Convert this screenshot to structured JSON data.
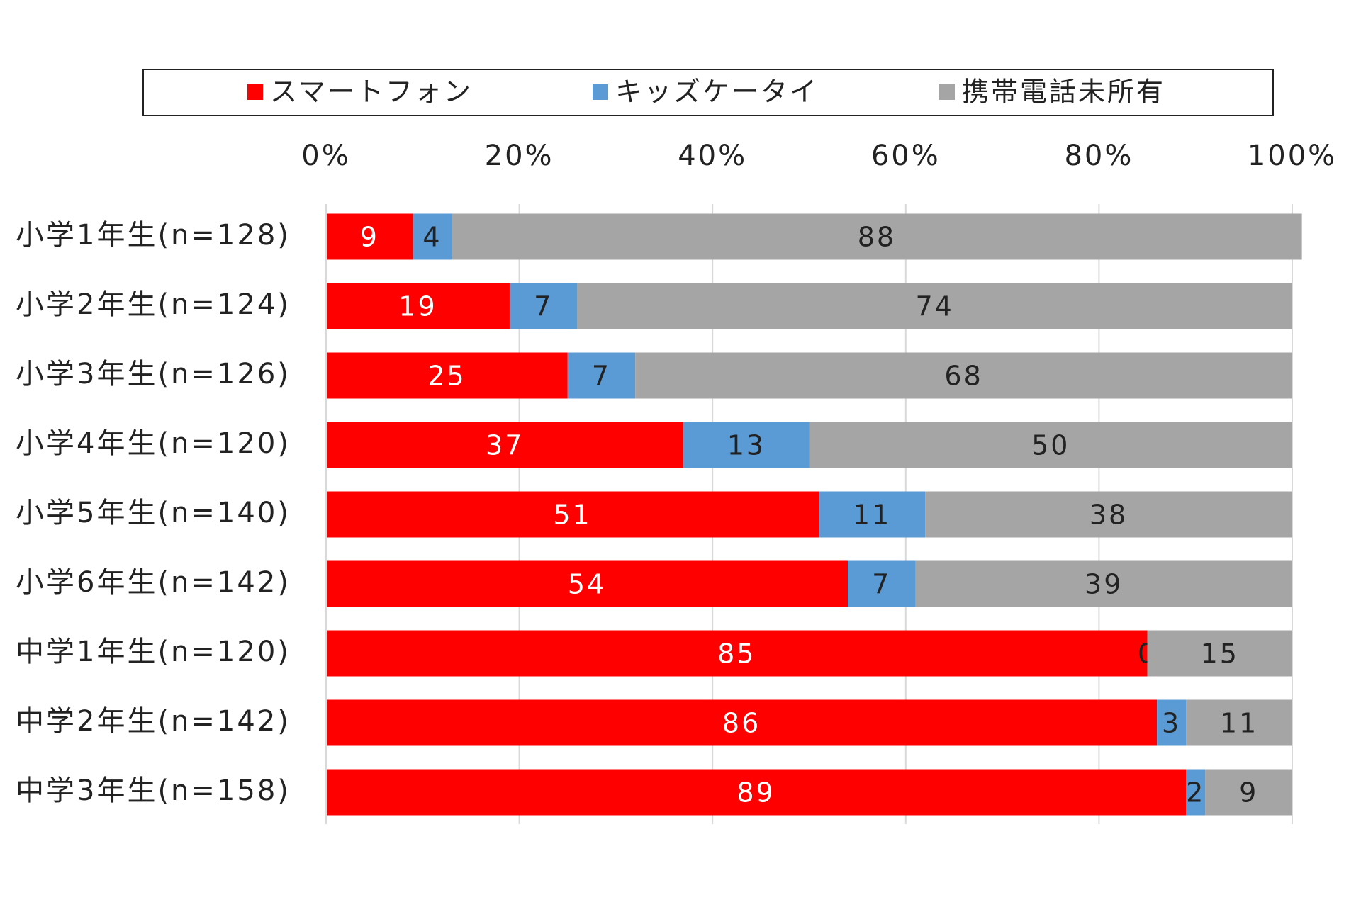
{
  "chart_data": {
    "type": "bar",
    "orientation": "horizontal",
    "stacked": true,
    "categories": [
      "小学1年生(n=128)",
      "小学2年生(n=124)",
      "小学3年生(n=126)",
      "小学4年生(n=120)",
      "小学5年生(n=140)",
      "小学6年生(n=142)",
      "中学1年生(n=120)",
      "中学2年生(n=142)",
      "中学3年生(n=158)"
    ],
    "series": [
      {
        "name": "スマートフォン",
        "color": "#ff0000",
        "values": [
          9,
          19,
          25,
          37,
          51,
          54,
          85,
          86,
          89
        ]
      },
      {
        "name": "キッズケータイ",
        "color": "#5b9bd5",
        "values": [
          4,
          7,
          7,
          13,
          11,
          7,
          0,
          3,
          2
        ]
      },
      {
        "name": "携帯電話未所有",
        "color": "#a5a5a5",
        "values": [
          88,
          74,
          68,
          50,
          38,
          39,
          15,
          11,
          9
        ]
      }
    ],
    "xlim": [
      0,
      100
    ],
    "xticks": [
      {
        "value": 0,
        "label": "0%"
      },
      {
        "value": 20,
        "label": "20%"
      },
      {
        "value": 40,
        "label": "40%"
      },
      {
        "value": 60,
        "label": "60%"
      },
      {
        "value": 80,
        "label": "80%"
      },
      {
        "value": 100,
        "label": "100%"
      }
    ],
    "grid": true,
    "legend": "top"
  }
}
